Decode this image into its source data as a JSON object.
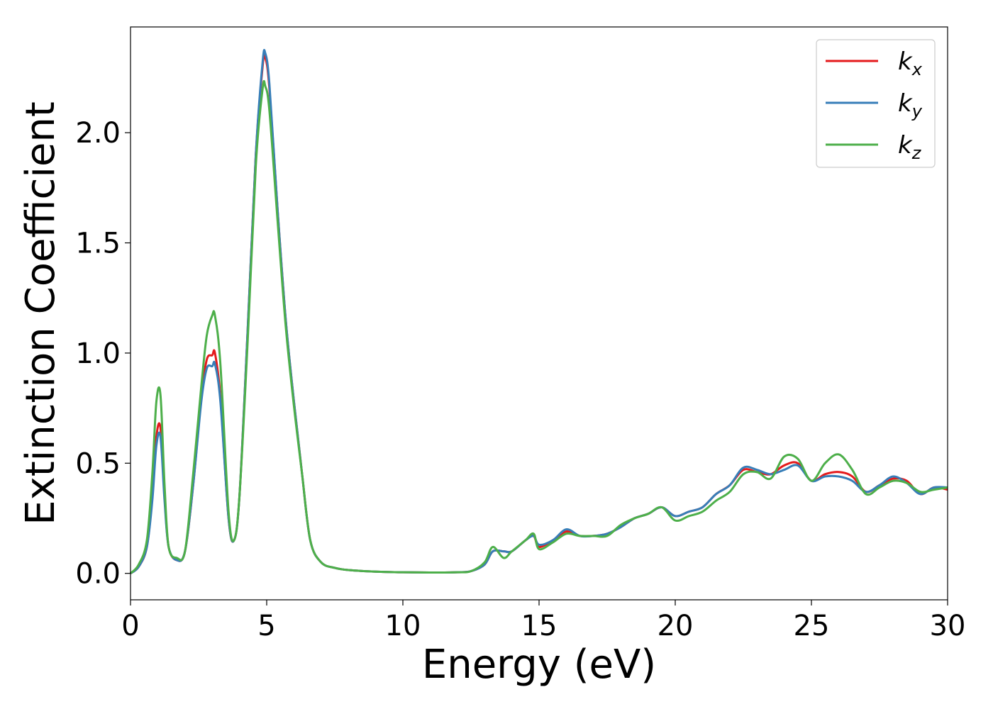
{
  "chart_data": {
    "type": "line",
    "xlabel": "Energy (eV)",
    "ylabel": "Extinction Coefficient",
    "xlim": [
      0,
      30
    ],
    "ylim": [
      -0.12,
      2.48
    ],
    "xticks": [
      0,
      5,
      10,
      15,
      20,
      25,
      30
    ],
    "xtick_labels": [
      "0",
      "5",
      "10",
      "15",
      "20",
      "25",
      "30"
    ],
    "yticks": [
      0.0,
      0.5,
      1.0,
      1.5,
      2.0
    ],
    "ytick_labels": [
      "0.0",
      "0.5",
      "1.0",
      "1.5",
      "2.0"
    ],
    "grid": false,
    "legend_position": "top-right",
    "series": [
      {
        "name": "k",
        "subscript": "x",
        "color": "#e41a1c",
        "x": [
          0,
          0.3,
          0.6,
          0.8,
          0.95,
          1.1,
          1.25,
          1.4,
          1.7,
          2.0,
          2.3,
          2.6,
          2.8,
          3.0,
          3.1,
          3.3,
          3.6,
          3.8,
          4.0,
          4.3,
          4.6,
          4.85,
          4.95,
          5.1,
          5.4,
          5.7,
          6.0,
          6.3,
          6.6,
          7.0,
          7.5,
          8,
          9,
          10,
          11,
          12,
          12.5,
          13,
          13.3,
          13.7,
          14.0,
          14.5,
          14.8,
          15.0,
          15.5,
          16.0,
          16.5,
          17.0,
          17.5,
          18.0,
          18.5,
          19.0,
          19.5,
          20.0,
          20.5,
          21.0,
          21.5,
          22.0,
          22.5,
          23.0,
          23.5,
          24.0,
          24.5,
          25.0,
          25.5,
          26.0,
          26.5,
          27.0,
          27.5,
          28.0,
          28.5,
          29.0,
          29.5,
          30.0
        ],
        "y": [
          0.0,
          0.03,
          0.12,
          0.35,
          0.62,
          0.66,
          0.35,
          0.12,
          0.06,
          0.1,
          0.4,
          0.8,
          0.97,
          0.99,
          1.0,
          0.8,
          0.25,
          0.15,
          0.35,
          1.1,
          1.9,
          2.3,
          2.34,
          2.2,
          1.65,
          1.15,
          0.78,
          0.45,
          0.15,
          0.05,
          0.025,
          0.015,
          0.008,
          0.005,
          0.004,
          0.005,
          0.01,
          0.04,
          0.1,
          0.1,
          0.1,
          0.15,
          0.17,
          0.12,
          0.15,
          0.19,
          0.17,
          0.17,
          0.18,
          0.21,
          0.25,
          0.27,
          0.3,
          0.26,
          0.28,
          0.3,
          0.36,
          0.4,
          0.47,
          0.46,
          0.45,
          0.49,
          0.5,
          0.42,
          0.45,
          0.46,
          0.44,
          0.37,
          0.4,
          0.43,
          0.42,
          0.36,
          0.39,
          0.38
        ]
      },
      {
        "name": "k",
        "subscript": "y",
        "color": "#377eb8",
        "x": [
          0,
          0.3,
          0.6,
          0.8,
          0.95,
          1.1,
          1.25,
          1.4,
          1.7,
          2.0,
          2.3,
          2.6,
          2.8,
          3.0,
          3.1,
          3.3,
          3.6,
          3.8,
          4.0,
          4.3,
          4.6,
          4.85,
          4.95,
          5.1,
          5.4,
          5.7,
          6.0,
          6.3,
          6.6,
          7.0,
          7.5,
          8,
          9,
          10,
          11,
          12,
          12.5,
          13,
          13.3,
          13.7,
          14.0,
          14.5,
          14.8,
          15.0,
          15.5,
          16.0,
          16.5,
          17.0,
          17.5,
          18.0,
          18.5,
          19.0,
          19.5,
          20.0,
          20.5,
          21.0,
          21.5,
          22.0,
          22.5,
          23.0,
          23.5,
          24.0,
          24.5,
          25.0,
          25.5,
          26.0,
          26.5,
          27.0,
          27.5,
          28.0,
          28.5,
          29.0,
          29.5,
          30.0
        ],
        "y": [
          0.0,
          0.03,
          0.12,
          0.33,
          0.58,
          0.62,
          0.33,
          0.12,
          0.06,
          0.1,
          0.4,
          0.78,
          0.93,
          0.94,
          0.95,
          0.78,
          0.25,
          0.15,
          0.35,
          1.1,
          1.9,
          2.32,
          2.36,
          2.22,
          1.65,
          1.15,
          0.78,
          0.45,
          0.15,
          0.05,
          0.025,
          0.015,
          0.008,
          0.005,
          0.004,
          0.005,
          0.01,
          0.04,
          0.1,
          0.1,
          0.1,
          0.15,
          0.17,
          0.13,
          0.15,
          0.2,
          0.17,
          0.17,
          0.18,
          0.21,
          0.25,
          0.27,
          0.3,
          0.26,
          0.28,
          0.3,
          0.36,
          0.4,
          0.48,
          0.47,
          0.45,
          0.47,
          0.49,
          0.42,
          0.44,
          0.44,
          0.42,
          0.37,
          0.4,
          0.44,
          0.41,
          0.36,
          0.39,
          0.39
        ]
      },
      {
        "name": "k",
        "subscript": "z",
        "color": "#4daf4a",
        "x": [
          0,
          0.3,
          0.6,
          0.8,
          0.95,
          1.1,
          1.25,
          1.4,
          1.7,
          2.0,
          2.3,
          2.6,
          2.8,
          3.0,
          3.1,
          3.3,
          3.6,
          3.8,
          4.0,
          4.3,
          4.6,
          4.85,
          4.95,
          5.1,
          5.4,
          5.7,
          6.0,
          6.3,
          6.6,
          7.0,
          7.5,
          8,
          9,
          10,
          11,
          12,
          12.5,
          13,
          13.3,
          13.7,
          14.0,
          14.5,
          14.8,
          15.0,
          15.5,
          16.0,
          16.5,
          17.0,
          17.5,
          18.0,
          18.5,
          19.0,
          19.5,
          20.0,
          20.5,
          21.0,
          21.5,
          22.0,
          22.5,
          23.0,
          23.5,
          24.0,
          24.5,
          25.0,
          25.5,
          26.0,
          26.5,
          27.0,
          27.5,
          28.0,
          28.5,
          29.0,
          29.5,
          30.0
        ],
        "y": [
          0.0,
          0.04,
          0.15,
          0.45,
          0.78,
          0.81,
          0.4,
          0.12,
          0.07,
          0.1,
          0.45,
          0.85,
          1.08,
          1.17,
          1.17,
          0.95,
          0.28,
          0.15,
          0.35,
          1.05,
          1.85,
          2.2,
          2.21,
          2.1,
          1.6,
          1.12,
          0.76,
          0.45,
          0.15,
          0.05,
          0.025,
          0.015,
          0.008,
          0.005,
          0.004,
          0.005,
          0.01,
          0.05,
          0.12,
          0.07,
          0.1,
          0.15,
          0.18,
          0.11,
          0.14,
          0.18,
          0.17,
          0.17,
          0.17,
          0.22,
          0.25,
          0.27,
          0.3,
          0.24,
          0.26,
          0.28,
          0.33,
          0.37,
          0.45,
          0.46,
          0.43,
          0.53,
          0.52,
          0.42,
          0.5,
          0.54,
          0.47,
          0.36,
          0.39,
          0.42,
          0.41,
          0.37,
          0.38,
          0.39
        ]
      }
    ]
  }
}
